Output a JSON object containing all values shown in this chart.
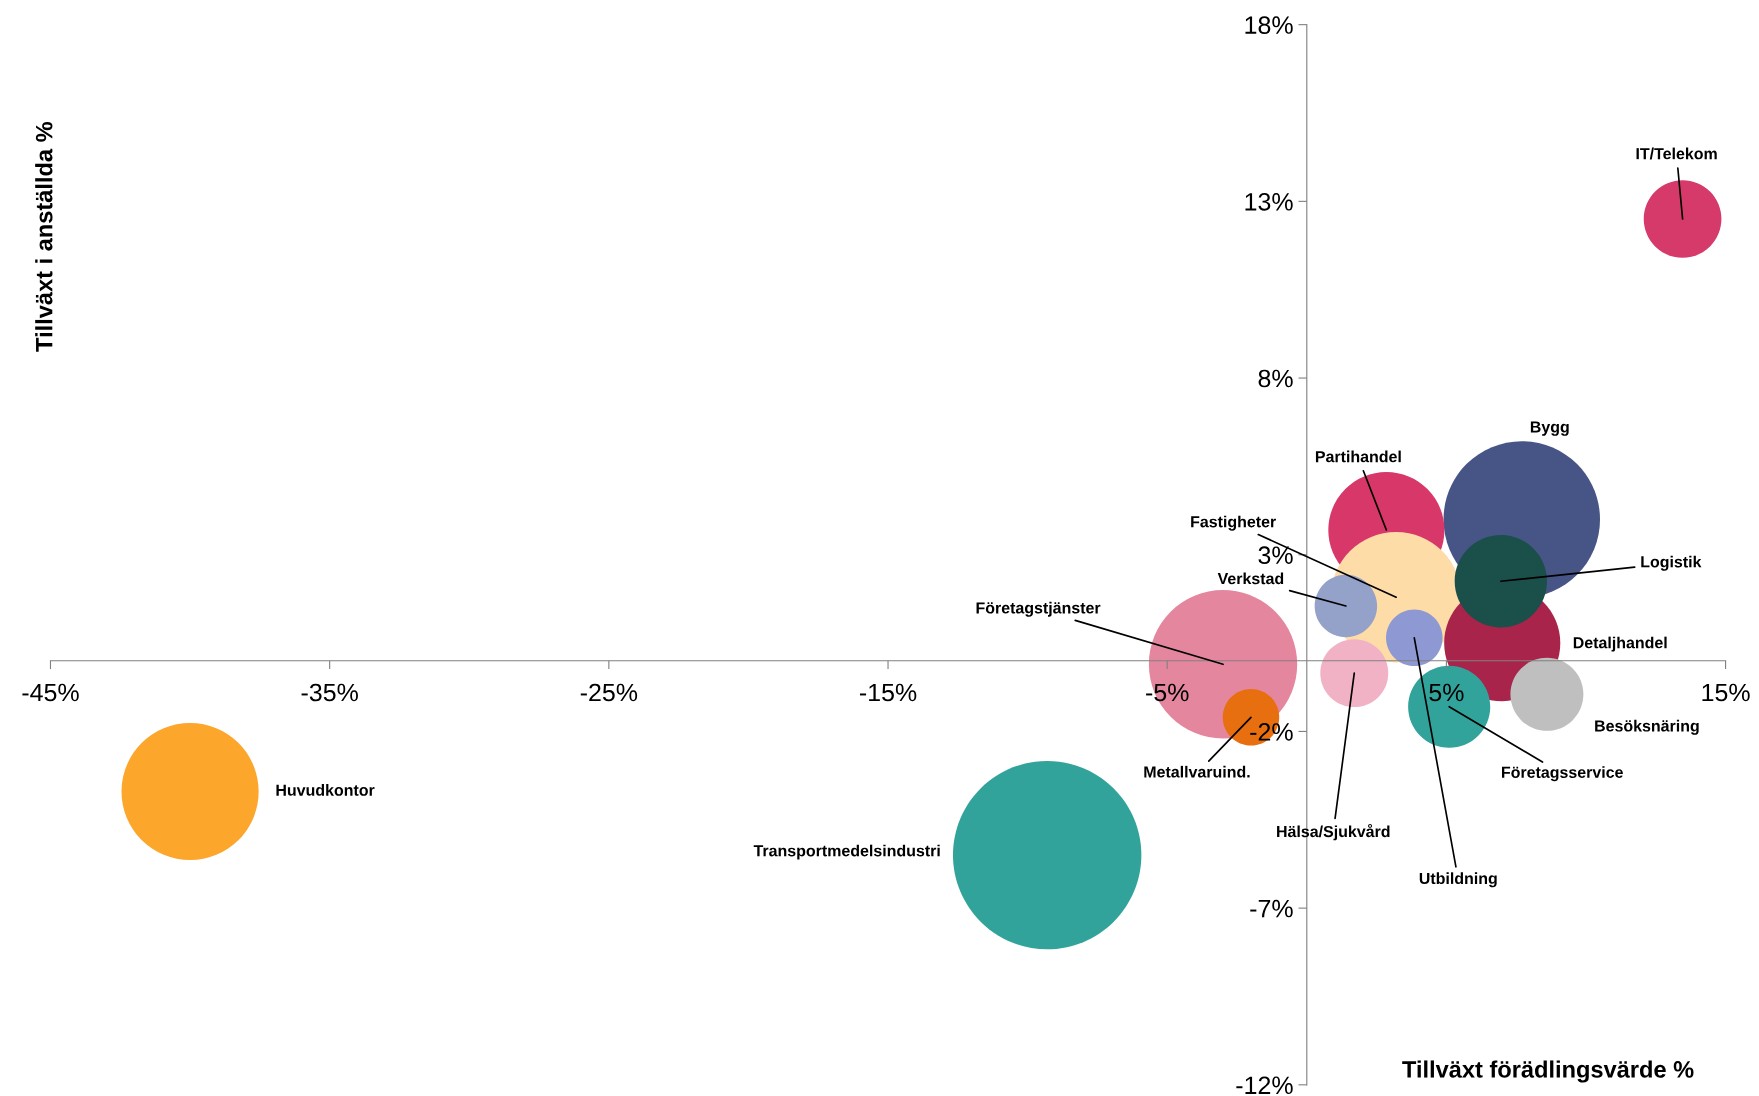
{
  "chart_data": {
    "type": "bubble",
    "xlabel": "Tillväxt förädlingsvärde %",
    "ylabel": "Tillväxt i anställda %",
    "xlim": [
      -45,
      15
    ],
    "ylim": [
      -12,
      18
    ],
    "xticks": [
      {
        "value": -45,
        "label": "-45%"
      },
      {
        "value": -35,
        "label": "-35%"
      },
      {
        "value": -25,
        "label": "-25%"
      },
      {
        "value": -15,
        "label": "-15%"
      },
      {
        "value": -5,
        "label": "-5%"
      },
      {
        "value": 5,
        "label": "5%"
      },
      {
        "value": 15,
        "label": "15%"
      }
    ],
    "yticks": [
      {
        "value": -12,
        "label": "-12%"
      },
      {
        "value": -7,
        "label": "-7%"
      },
      {
        "value": -2,
        "label": "-2%"
      },
      {
        "value": 3,
        "label": "3%"
      },
      {
        "value": 8,
        "label": "8%"
      },
      {
        "value": 13,
        "label": "13%"
      },
      {
        "value": 18,
        "label": "18%"
      }
    ],
    "grid": false,
    "legend": false,
    "series": [
      {
        "name": "Transportmedelsindustri",
        "color": "#31a39b",
        "x": [
          -9.3
        ],
        "values": [
          -5.5
        ],
        "sizes": [
          1
        ]
      },
      {
        "name": "Huvudkontor",
        "color": "#fca62b",
        "x": [
          -40.0
        ],
        "values": [
          -3.7
        ],
        "sizes": [
          0.53
        ]
      },
      {
        "name": "Företagstjänster",
        "color": "#e5869f",
        "x": [
          -3.0
        ],
        "values": [
          -0.1
        ],
        "sizes": [
          0.62
        ]
      },
      {
        "name": "Metallvaruind.",
        "color": "#e76f10",
        "x": [
          -2.0
        ],
        "values": [
          -1.6
        ],
        "sizes": [
          0.09
        ]
      },
      {
        "name": "Bygg",
        "color": "#475486",
        "x": [
          7.7
        ],
        "values": [
          4.0
        ],
        "sizes": [
          0.69
        ]
      },
      {
        "name": "Partihandel",
        "color": "#d8376a",
        "x": [
          2.85
        ],
        "values": [
          3.7
        ],
        "sizes": [
          0.38
        ]
      },
      {
        "name": "Fastigheter",
        "color": "#fddca8",
        "x": [
          3.2
        ],
        "values": [
          1.8
        ],
        "sizes": [
          0.48
        ]
      },
      {
        "name": "Detaljhandel",
        "color": "#a8244a",
        "x": [
          7.0
        ],
        "values": [
          0.5
        ],
        "sizes": [
          0.38
        ]
      },
      {
        "name": "Logistik",
        "color": "#1b4f4a",
        "x": [
          6.95
        ],
        "values": [
          2.25
        ],
        "sizes": [
          0.24
        ]
      },
      {
        "name": "Verkstad",
        "color": "#94a1c9",
        "x": [
          1.4
        ],
        "values": [
          1.55
        ],
        "sizes": [
          0.11
        ]
      },
      {
        "name": "Utbildning",
        "color": "#8e98d2",
        "x": [
          3.85
        ],
        "values": [
          0.65
        ],
        "sizes": [
          0.09
        ]
      },
      {
        "name": "Hälsa/Sjukvård",
        "color": "#f0b2c4",
        "x": [
          1.7
        ],
        "values": [
          -0.35
        ],
        "sizes": [
          0.13
        ]
      },
      {
        "name": "Företagsservice",
        "color": "#31a39b",
        "x": [
          5.1
        ],
        "values": [
          -1.3
        ],
        "sizes": [
          0.19
        ]
      },
      {
        "name": "Besöksnäring",
        "color": "#bfbfbf",
        "x": [
          8.6
        ],
        "values": [
          -0.95
        ],
        "sizes": [
          0.15
        ]
      },
      {
        "name": "IT/Telekom",
        "color": "#d63a6a",
        "x": [
          13.46
        ],
        "values": [
          12.5
        ],
        "sizes": [
          0.17
        ]
      }
    ]
  }
}
